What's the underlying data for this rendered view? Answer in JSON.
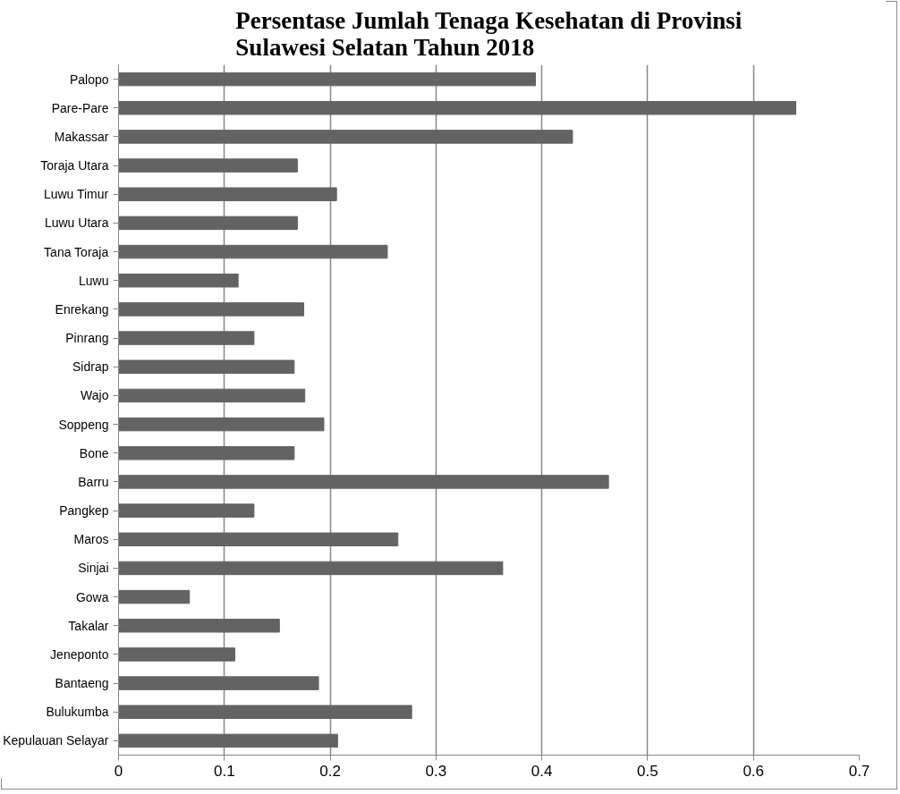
{
  "chart_data": {
    "type": "bar",
    "orientation": "horizontal",
    "title": "Persentase Jumlah Tenaga Kesehatan di Provinsi\nSulawesi   Selatan   Tahun 2018",
    "categories": [
      "Palopo",
      "Pare-Pare",
      "Makassar",
      "Toraja Utara",
      "Luwu Timur",
      "Luwu Utara",
      "Tana Toraja",
      "Luwu",
      "Enrekang",
      "Pinrang",
      "Sidrap",
      "Wajo",
      "Soppeng",
      "Bone",
      "Barru",
      "Pangkep",
      "Maros",
      "Sinjai",
      "Gowa",
      "Takalar",
      "Jeneponto",
      "Bantaeng",
      "Bulukumba",
      "Kepulauan Selayar"
    ],
    "values": [
      0.394,
      0.64,
      0.429,
      0.169,
      0.206,
      0.169,
      0.254,
      0.113,
      0.175,
      0.128,
      0.166,
      0.176,
      0.194,
      0.166,
      0.463,
      0.128,
      0.264,
      0.363,
      0.067,
      0.152,
      0.11,
      0.189,
      0.277,
      0.207
    ],
    "color": "#636363",
    "xlim": [
      0,
      0.7
    ],
    "xticks": [
      0,
      0.1,
      0.2,
      0.3,
      0.4,
      0.5,
      0.6,
      0.7
    ],
    "grid": "x"
  }
}
